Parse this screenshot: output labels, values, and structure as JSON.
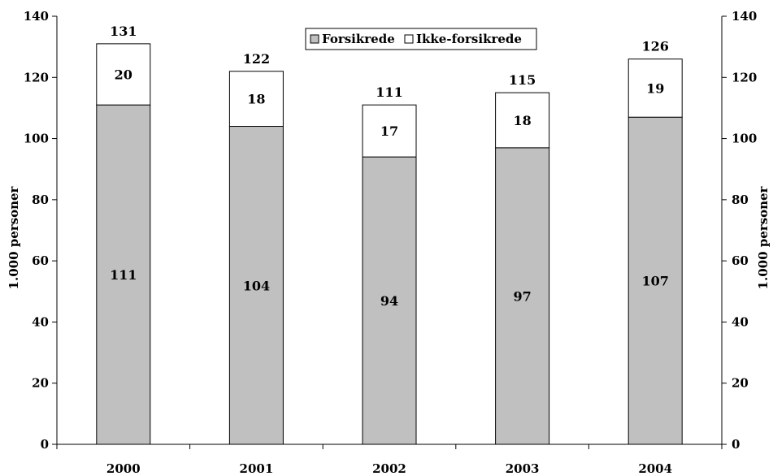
{
  "chart_data": {
    "type": "bar",
    "stacked": true,
    "categories": [
      "2000",
      "2001",
      "2002",
      "2003",
      "2004"
    ],
    "series": [
      {
        "name": "Forsikrede",
        "values": [
          111,
          104,
          94,
          97,
          107
        ],
        "color": "#c0c0c0"
      },
      {
        "name": "Ikke-forsikrede",
        "values": [
          20,
          18,
          17,
          18,
          19
        ],
        "color": "#ffffff"
      }
    ],
    "totals": [
      131,
      122,
      111,
      115,
      126
    ],
    "title": "",
    "xlabel": "",
    "ylabel": "1.000 personer",
    "ylabel_right": "1.000 personer",
    "ylim": [
      0,
      140
    ],
    "yticks": [
      "0",
      "20",
      "40",
      "60",
      "80",
      "100",
      "120",
      "140"
    ],
    "legend_position": "top-center",
    "grid": false
  }
}
